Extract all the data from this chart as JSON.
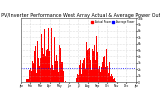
{
  "title": "Solar PV/Inverter Performance West Array Actual & Average Power Output",
  "title_fontsize": 3.5,
  "bg_color": "#ffffff",
  "plot_bg_color": "#ffffff",
  "grid_color": "#aaaaaa",
  "bar_color": "#ff0000",
  "avg_line_color": "#0000ff",
  "avg_line_style": "dotted",
  "avg_value": 0.22,
  "ylim": [
    0,
    1.0
  ],
  "ytick_labels": [
    "0",
    "1k",
    "2k",
    "3k",
    "4k",
    "5k",
    "6k",
    "7k",
    "8k",
    "9k",
    "10k"
  ],
  "legend_actual": "Actual Power",
  "legend_avg": "Average Power",
  "legend_actual_color": "#ff0000",
  "legend_avg_color": "#0000ff",
  "num_points": 520,
  "seed": 99
}
